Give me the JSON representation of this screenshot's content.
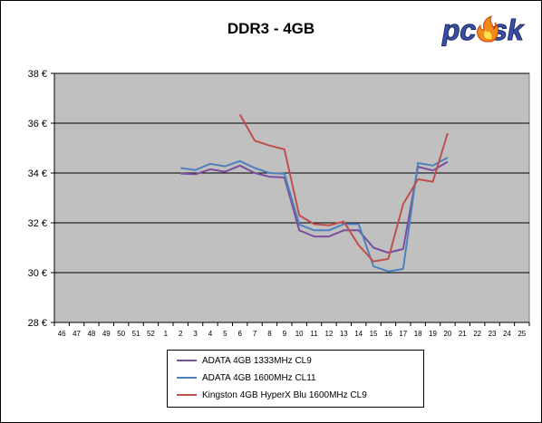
{
  "chart_data": {
    "type": "line",
    "title": "DDR3 - 4GB",
    "x_labels": [
      "46",
      "47",
      "48",
      "49",
      "50",
      "51",
      "52",
      "1",
      "2",
      "3",
      "4",
      "5",
      "6",
      "7",
      "8",
      "9",
      "10",
      "11",
      "12",
      "13",
      "14",
      "15",
      "16",
      "17",
      "18",
      "19",
      "20",
      "21",
      "22",
      "23",
      "24",
      "25"
    ],
    "y_ticks": [
      "28 €",
      "30 €",
      "32 €",
      "34 €",
      "36 €",
      "38 €"
    ],
    "ylim": [
      28,
      38
    ],
    "grid": "horizontal",
    "legend_position": "bottom",
    "series": [
      {
        "name": "ADATA 4GB 1333MHz CL9",
        "color": "#7b4f9d",
        "values": [
          null,
          null,
          null,
          null,
          null,
          null,
          null,
          null,
          33.98,
          33.95,
          34.15,
          34.05,
          34.3,
          34.0,
          33.85,
          33.82,
          31.7,
          31.45,
          31.45,
          31.7,
          31.7,
          31.0,
          30.8,
          30.95,
          34.25,
          34.1,
          34.45,
          null,
          null,
          null,
          null,
          null
        ]
      },
      {
        "name": "ADATA 4GB 1600MHz CL11",
        "color": "#4f81bd",
        "values": [
          null,
          null,
          null,
          null,
          null,
          null,
          null,
          null,
          34.2,
          34.12,
          34.37,
          34.27,
          34.48,
          34.2,
          34.0,
          33.97,
          31.93,
          31.7,
          31.7,
          31.95,
          31.95,
          30.25,
          30.05,
          30.15,
          34.4,
          34.3,
          34.62,
          null,
          null,
          null,
          null,
          null
        ]
      },
      {
        "name": "Kingston 4GB HyperX Blu 1600MHz CL9",
        "color": "#c0504d",
        "values": [
          null,
          null,
          null,
          null,
          null,
          null,
          null,
          null,
          null,
          null,
          null,
          null,
          36.35,
          35.3,
          35.1,
          34.95,
          32.3,
          31.95,
          31.9,
          32.05,
          31.1,
          30.45,
          30.55,
          32.75,
          33.75,
          33.65,
          35.6,
          null,
          null,
          null,
          null,
          null
        ]
      }
    ]
  },
  "logo": {
    "text": "pc sk"
  }
}
